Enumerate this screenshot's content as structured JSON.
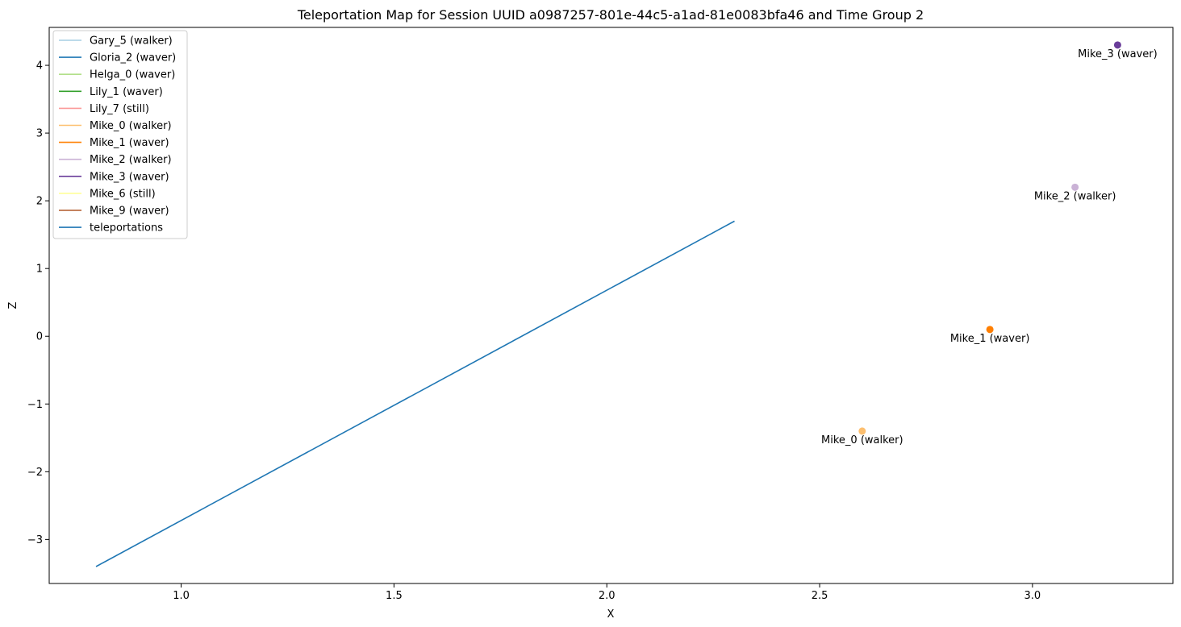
{
  "chart_data": {
    "type": "scatter",
    "title": "Teleportation Map for Session UUID a0987257-801e-44c5-a1ad-81e0083bfa46 and Time Group 2",
    "xlabel": "X",
    "ylabel": "Z",
    "xlim": [
      0.69,
      3.33
    ],
    "ylim": [
      -3.65,
      4.56
    ],
    "xticks": [
      "1.0",
      "1.5",
      "2.0",
      "2.5",
      "3.0"
    ],
    "xtick_values": [
      1.0,
      1.5,
      2.0,
      2.5,
      3.0
    ],
    "yticks": [
      "-3",
      "-2",
      "-1",
      "0",
      "1",
      "2",
      "3",
      "4"
    ],
    "ytick_values": [
      -3,
      -2,
      -1,
      0,
      1,
      2,
      3,
      4
    ],
    "grid": false,
    "legend_position": "top-left",
    "legend": [
      {
        "label": "Gary_5 (walker)",
        "color": "#a6cee3"
      },
      {
        "label": "Gloria_2 (waver)",
        "color": "#1f78b4"
      },
      {
        "label": "Helga_0 (waver)",
        "color": "#b2df8a"
      },
      {
        "label": "Lily_1 (waver)",
        "color": "#33a02c"
      },
      {
        "label": "Lily_7 (still)",
        "color": "#fb9a99"
      },
      {
        "label": "Mike_0 (walker)",
        "color": "#fdbf6f"
      },
      {
        "label": "Mike_1 (waver)",
        "color": "#ff7f00"
      },
      {
        "label": "Mike_2 (walker)",
        "color": "#cab2d6"
      },
      {
        "label": "Mike_3 (waver)",
        "color": "#6a3d9a"
      },
      {
        "label": "Mike_6 (still)",
        "color": "#ffff99"
      },
      {
        "label": "Mike_9 (waver)",
        "color": "#b15928"
      },
      {
        "label": "teleportations",
        "color": "#1f77b4"
      }
    ],
    "points": [
      {
        "label": "Mike_0 (walker)",
        "x": 2.6,
        "y": -1.4,
        "color": "#fdbf6f"
      },
      {
        "label": "Mike_1 (waver)",
        "x": 2.9,
        "y": 0.1,
        "color": "#ff7f00"
      },
      {
        "label": "Mike_2 (walker)",
        "x": 3.1,
        "y": 2.2,
        "color": "#cab2d6"
      },
      {
        "label": "Mike_3 (waver)",
        "x": 3.2,
        "y": 4.3,
        "color": "#6a3d9a"
      }
    ],
    "teleportations": {
      "color": "#1f77b4",
      "x": [
        0.8,
        2.3
      ],
      "y": [
        -3.4,
        1.7
      ]
    }
  }
}
